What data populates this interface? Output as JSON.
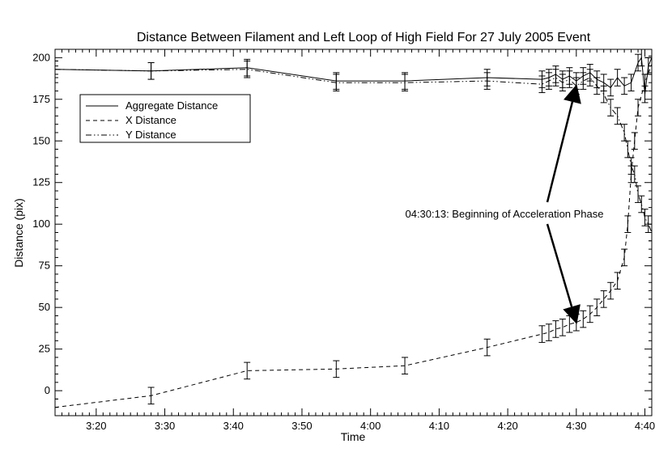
{
  "chart_data": {
    "type": "line",
    "title": "Distance Between Filament and Left Loop of High Field For 27 July 2005 Event",
    "xlabel": "Time",
    "ylabel": "Distance (pix)",
    "xlim": [
      "3:14",
      "4:41"
    ],
    "ylim": [
      -15,
      205
    ],
    "x_ticks": [
      "3:20",
      "3:30",
      "3:40",
      "3:50",
      "4:00",
      "4:10",
      "4:20",
      "4:30",
      "4:40"
    ],
    "y_ticks": [
      0,
      25,
      50,
      75,
      100,
      125,
      150,
      175,
      200
    ],
    "grid": false,
    "legend_position": "top-left",
    "error_bar_half_width": 5,
    "series": [
      {
        "name": "Aggregate Distance",
        "dash": "solid",
        "x": [
          "3:14",
          "3:28",
          "3:42",
          "3:55",
          "4:05",
          "4:17",
          "4:25",
          "4:26",
          "4:27",
          "4:28",
          "4:29",
          "4:30",
          "4:31",
          "4:32",
          "4:33",
          "4:34",
          "4:35",
          "4:36",
          "4:37",
          "4:38",
          "4:39",
          "4:39:30",
          "4:40",
          "4:40:30",
          "4:41"
        ],
        "y": [
          193,
          192,
          194,
          186,
          186,
          188,
          187,
          188,
          190,
          187,
          189,
          186,
          189,
          191,
          187,
          185,
          182,
          188,
          183,
          185,
          197,
          200,
          178,
          195,
          200
        ]
      },
      {
        "name": "X Distance",
        "dash": "dashed",
        "x": [
          "3:14",
          "3:28",
          "3:42",
          "3:55",
          "4:05",
          "4:17",
          "4:25",
          "4:26",
          "4:27",
          "4:28",
          "4:29",
          "4:30",
          "4:31",
          "4:32",
          "4:33",
          "4:34",
          "4:35",
          "4:36",
          "4:37",
          "4:37:30",
          "4:38",
          "4:38:30",
          "4:39",
          "4:40",
          "4:41"
        ],
        "y": [
          -10,
          -3,
          12,
          13,
          15,
          26,
          34,
          35,
          37,
          38,
          40,
          41,
          43,
          46,
          50,
          55,
          60,
          66,
          80,
          100,
          130,
          150,
          170,
          185,
          196
        ]
      },
      {
        "name": "Y Distance",
        "dash": "dash-dot-dot",
        "x": [
          "3:14",
          "3:28",
          "3:42",
          "3:55",
          "4:05",
          "4:17",
          "4:25",
          "4:26",
          "4:27",
          "4:28",
          "4:29",
          "4:30",
          "4:31",
          "4:32",
          "4:33",
          "4:34",
          "4:35",
          "4:36",
          "4:37",
          "4:37:30",
          "4:38",
          "4:38:30",
          "4:39",
          "4:39:30",
          "4:40",
          "4:40:30",
          "4:41"
        ],
        "y": [
          193,
          192,
          193,
          185,
          185,
          186,
          184,
          186,
          188,
          185,
          187,
          183,
          186,
          188,
          183,
          178,
          170,
          165,
          155,
          145,
          135,
          130,
          118,
          112,
          104,
          100,
          95
        ]
      }
    ],
    "annotation": {
      "text": "04:30:13: Beginning of Acceleration Phase",
      "arrow_targets": [
        {
          "x": "4:30",
          "y": 183
        },
        {
          "x": "4:30",
          "y": 41
        }
      ]
    }
  }
}
